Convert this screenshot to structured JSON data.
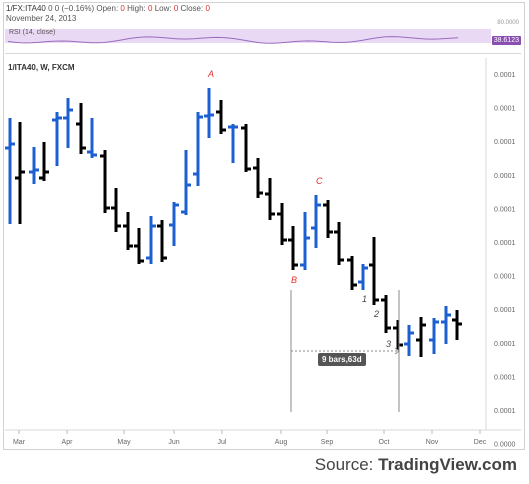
{
  "header": {
    "symbol": "1/FX:ITA40",
    "values": "0 0 (−0.16%)",
    "open_label": "Open:",
    "open_value": "0",
    "high_label": "High:",
    "high_value": "0",
    "low_label": "Low:",
    "low_value": "0",
    "close_label": "Close:",
    "close_value": "0",
    "date": "November 24, 2013"
  },
  "rsi": {
    "label": "RSI (14, close)",
    "top_tick": "80.0000",
    "value": "38.6123"
  },
  "chart_title": "1/ITA40, W, FXCM",
  "price_axis": [
    "0.0001",
    "0.0001",
    "0.0001",
    "0.0001",
    "0.0001",
    "0.0001",
    "0.0001",
    "0.0001",
    "0.0001",
    "0.0001",
    "0.0001",
    "0.0000"
  ],
  "time_axis": [
    "Mar",
    "Apr",
    "May",
    "Jun",
    "Jul",
    "Aug",
    "Sep",
    "Oct",
    "Nov",
    "Dec"
  ],
  "annotations": {
    "A": "A",
    "B": "B",
    "C": "C",
    "one": "1",
    "two": "2",
    "three": "3"
  },
  "measure_label": "9 bars,63d",
  "source": {
    "prefix": "Source:",
    "brand": "TradingView.com"
  },
  "colors": {
    "up": "#1c5fd1",
    "down": "#000000",
    "annotation": "#e03030",
    "rsi_band": "#ead9f5",
    "rsi_line": "#9a6bbf"
  },
  "chart_data": {
    "type": "ohlc",
    "series": [
      {
        "x": "Mar wk1",
        "o": 148,
        "h": 118,
        "l": 224,
        "c": 144,
        "dir": "up"
      },
      {
        "x": "Mar wk2",
        "o": 178,
        "h": 122,
        "l": 224,
        "c": 172,
        "dir": "down"
      },
      {
        "x": "Mar wk3",
        "o": 172,
        "h": 147,
        "l": 184,
        "c": 170,
        "dir": "up"
      },
      {
        "x": "Mar wk4",
        "o": 178,
        "h": 142,
        "l": 181,
        "c": 172,
        "dir": "down"
      },
      {
        "x": "Apr wk1",
        "o": 120,
        "h": 112,
        "l": 166,
        "c": 118,
        "dir": "up"
      },
      {
        "x": "Apr wk2",
        "o": 118,
        "h": 98,
        "l": 148,
        "c": 110,
        "dir": "up"
      },
      {
        "x": "Apr wk3",
        "o": 124,
        "h": 103,
        "l": 154,
        "c": 148,
        "dir": "down"
      },
      {
        "x": "Apr wk4",
        "o": 152,
        "h": 118,
        "l": 158,
        "c": 155,
        "dir": "up"
      },
      {
        "x": "May wk1",
        "o": 156,
        "h": 150,
        "l": 213,
        "c": 208,
        "dir": "down"
      },
      {
        "x": "May wk2",
        "o": 208,
        "h": 188,
        "l": 232,
        "c": 226,
        "dir": "down"
      },
      {
        "x": "May wk3",
        "o": 226,
        "h": 212,
        "l": 250,
        "c": 246,
        "dir": "down"
      },
      {
        "x": "May wk4",
        "o": 246,
        "h": 228,
        "l": 264,
        "c": 261,
        "dir": "down"
      },
      {
        "x": "Jun wk1",
        "o": 258,
        "h": 216,
        "l": 264,
        "c": 226,
        "dir": "up"
      },
      {
        "x": "Jun wk2",
        "o": 226,
        "h": 220,
        "l": 262,
        "c": 258,
        "dir": "down"
      },
      {
        "x": "Jun wk3",
        "o": 225,
        "h": 202,
        "l": 246,
        "c": 205,
        "dir": "up"
      },
      {
        "x": "Jun wk4",
        "o": 212,
        "h": 150,
        "l": 215,
        "c": 185,
        "dir": "up"
      },
      {
        "x": "Jul wk1",
        "o": 174,
        "h": 112,
        "l": 186,
        "c": 117,
        "dir": "up"
      },
      {
        "x": "Jul wk2",
        "o": 116,
        "h": 88,
        "l": 138,
        "c": 115,
        "dir": "up"
      },
      {
        "x": "Jul wk3",
        "o": 112,
        "h": 100,
        "l": 134,
        "c": 130,
        "dir": "down"
      },
      {
        "x": "Jul wk4",
        "o": 127,
        "h": 124,
        "l": 163,
        "c": 127,
        "dir": "up"
      },
      {
        "x": "Aug wk1",
        "o": 128,
        "h": 124,
        "l": 172,
        "c": 169,
        "dir": "down"
      },
      {
        "x": "Aug wk2",
        "o": 168,
        "h": 158,
        "l": 198,
        "c": 193,
        "dir": "down"
      },
      {
        "x": "Aug wk3",
        "o": 194,
        "h": 178,
        "l": 220,
        "c": 214,
        "dir": "down"
      },
      {
        "x": "Aug wk4",
        "o": 214,
        "h": 203,
        "l": 245,
        "c": 240,
        "dir": "down"
      },
      {
        "x": "Sep wk1",
        "o": 240,
        "h": 226,
        "l": 270,
        "c": 265,
        "dir": "down"
      },
      {
        "x": "Sep wk2",
        "o": 265,
        "h": 212,
        "l": 270,
        "c": 238,
        "dir": "up"
      },
      {
        "x": "Sep wk3",
        "o": 228,
        "h": 195,
        "l": 248,
        "c": 205,
        "dir": "up"
      },
      {
        "x": "Sep wk4",
        "o": 205,
        "h": 200,
        "l": 238,
        "c": 232,
        "dir": "down"
      },
      {
        "x": "Oct wk1",
        "o": 232,
        "h": 222,
        "l": 265,
        "c": 260,
        "dir": "down"
      },
      {
        "x": "Oct wk2",
        "o": 260,
        "h": 256,
        "l": 290,
        "c": 285,
        "dir": "down"
      },
      {
        "x": "Oct wk3",
        "o": 282,
        "h": 264,
        "l": 290,
        "c": 268,
        "dir": "up"
      },
      {
        "x": "Oct wk4",
        "o": 265,
        "h": 237,
        "l": 305,
        "c": 300,
        "dir": "down"
      },
      {
        "x": "Nov wk1",
        "o": 300,
        "h": 295,
        "l": 333,
        "c": 328,
        "dir": "down"
      },
      {
        "x": "Nov wk2",
        "o": 328,
        "h": 320,
        "l": 350,
        "c": 345,
        "dir": "down"
      },
      {
        "x": "Nov wk3",
        "o": 344,
        "h": 325,
        "l": 356,
        "c": 333,
        "dir": "up"
      },
      {
        "x": "Nov wk4",
        "o": 340,
        "h": 317,
        "l": 357,
        "c": 325,
        "dir": "down"
      },
      {
        "x": "Dec wk1",
        "o": 340,
        "h": 318,
        "l": 354,
        "c": 322,
        "dir": "up"
      },
      {
        "x": "Dec wk2",
        "o": 322,
        "h": 306,
        "l": 344,
        "c": 315,
        "dir": "up"
      },
      {
        "x": "Dec wk3",
        "o": 320,
        "h": 310,
        "l": 340,
        "c": 324,
        "dir": "down"
      }
    ],
    "note": "values are read relative to the unlabeled price axis"
  }
}
